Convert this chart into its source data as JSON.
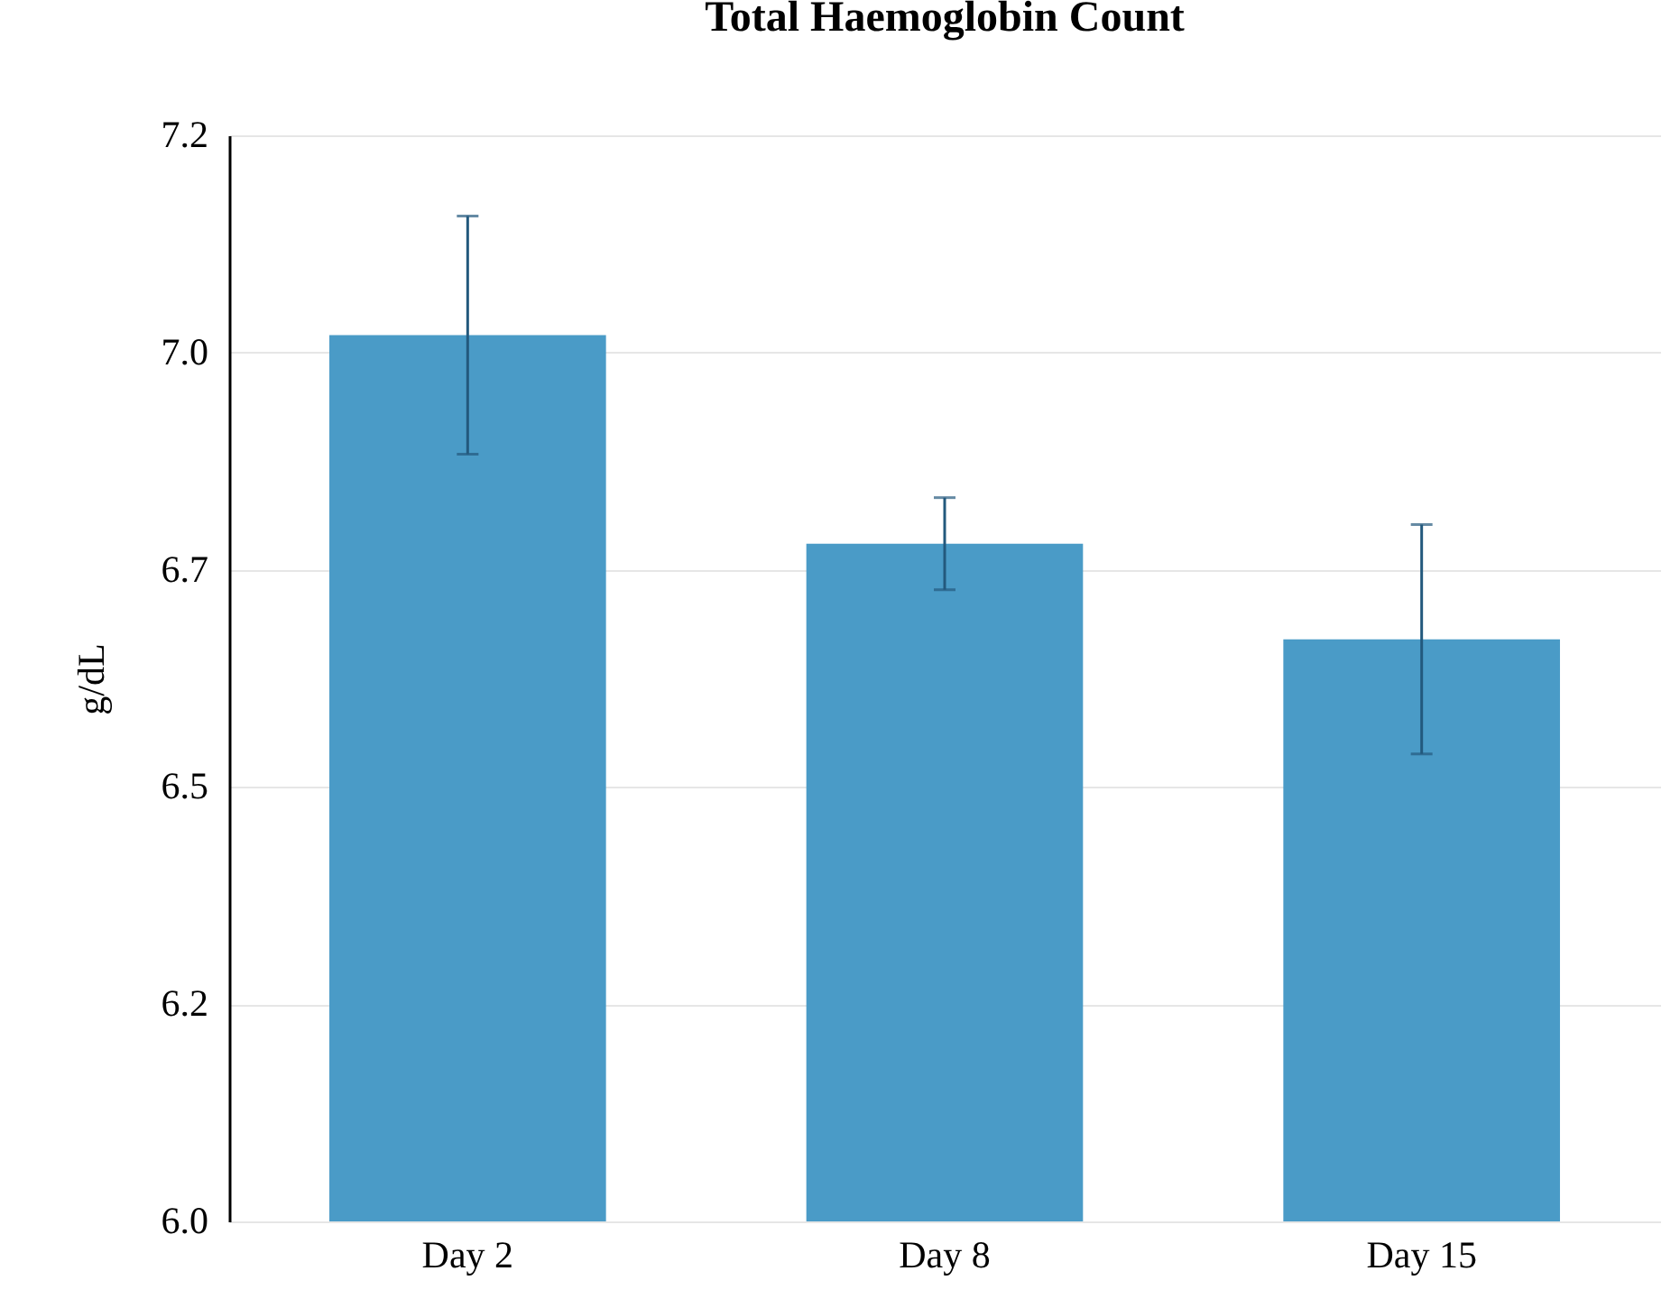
{
  "chart_data": {
    "type": "bar",
    "title": "Total Haemoglobin Count",
    "ylabel": "g/dL",
    "categories": [
      "Day 2",
      "Day 8",
      "Day 15"
    ],
    "values": [
      7.02,
      6.78,
      6.67
    ],
    "errors": [
      0.137,
      0.053,
      0.132
    ],
    "color": "#4a9bc7",
    "ylim": [
      6.0,
      7.25
    ],
    "yticks": [
      {
        "value": 6,
        "label": "6.0"
      },
      {
        "value": 6.25,
        "label": "6.2"
      },
      6.5,
      {
        "value": 6.75,
        "label": "6.7"
      },
      {
        "value": 7,
        "label": "7.0"
      },
      {
        "value": 7.25,
        "label": "7.2"
      }
    ],
    "grid": "y"
  }
}
